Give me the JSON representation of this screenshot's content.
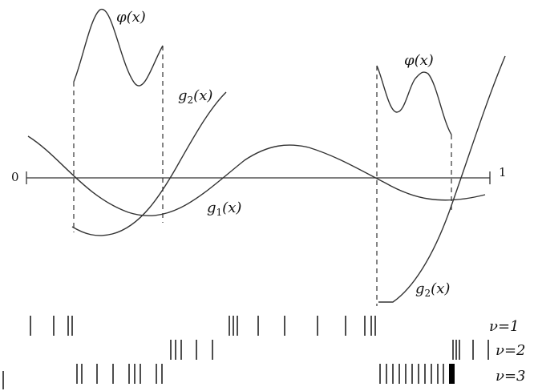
{
  "axis": {
    "left_label": "0",
    "right_label": "1"
  },
  "labels": {
    "phi_left": "φ(x)",
    "phi_right": "φ(x)",
    "g2_top": {
      "main": "g",
      "sub": "2",
      "arg": "(x)"
    },
    "g1": {
      "main": "g",
      "sub": "1",
      "arg": "(x)"
    },
    "g2_bottom": {
      "main": "g",
      "sub": "2",
      "arg": "(x)"
    }
  },
  "rows": [
    {
      "label": "ν=1"
    },
    {
      "label": "ν=2"
    },
    {
      "label": "ν=3"
    }
  ]
}
